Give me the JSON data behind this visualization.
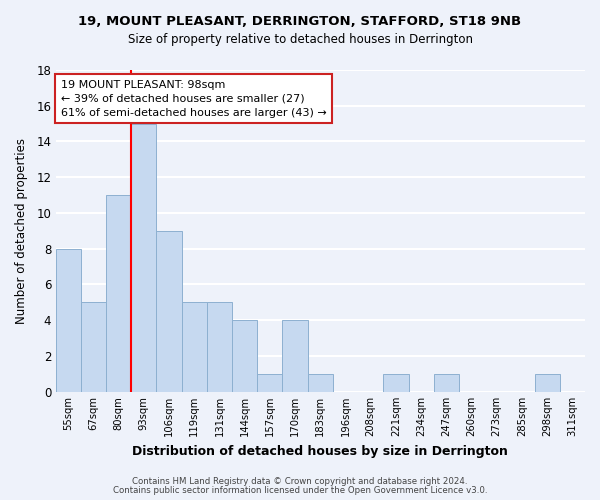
{
  "title": "19, MOUNT PLEASANT, DERRINGTON, STAFFORD, ST18 9NB",
  "subtitle": "Size of property relative to detached houses in Derrington",
  "xlabel": "Distribution of detached houses by size in Derrington",
  "ylabel": "Number of detached properties",
  "bin_labels": [
    "55sqm",
    "67sqm",
    "80sqm",
    "93sqm",
    "106sqm",
    "119sqm",
    "131sqm",
    "144sqm",
    "157sqm",
    "170sqm",
    "183sqm",
    "196sqm",
    "208sqm",
    "221sqm",
    "234sqm",
    "247sqm",
    "260sqm",
    "273sqm",
    "285sqm",
    "298sqm",
    "311sqm"
  ],
  "bar_heights": [
    8,
    5,
    11,
    15,
    9,
    5,
    5,
    4,
    1,
    4,
    1,
    0,
    0,
    1,
    0,
    1,
    0,
    0,
    0,
    1,
    0
  ],
  "bar_color": "#c6d9f0",
  "bar_edge_color": "#8db0d0",
  "vline_x_index": 3.0,
  "vline_color": "red",
  "annotation_box_text": "19 MOUNT PLEASANT: 98sqm\n← 39% of detached houses are smaller (27)\n61% of semi-detached houses are larger (43) →",
  "ylim": [
    0,
    18
  ],
  "yticks": [
    0,
    2,
    4,
    6,
    8,
    10,
    12,
    14,
    16,
    18
  ],
  "footer_line1": "Contains HM Land Registry data © Crown copyright and database right 2024.",
  "footer_line2": "Contains public sector information licensed under the Open Government Licence v3.0.",
  "bg_color": "#eef2fa",
  "grid_color": "white"
}
